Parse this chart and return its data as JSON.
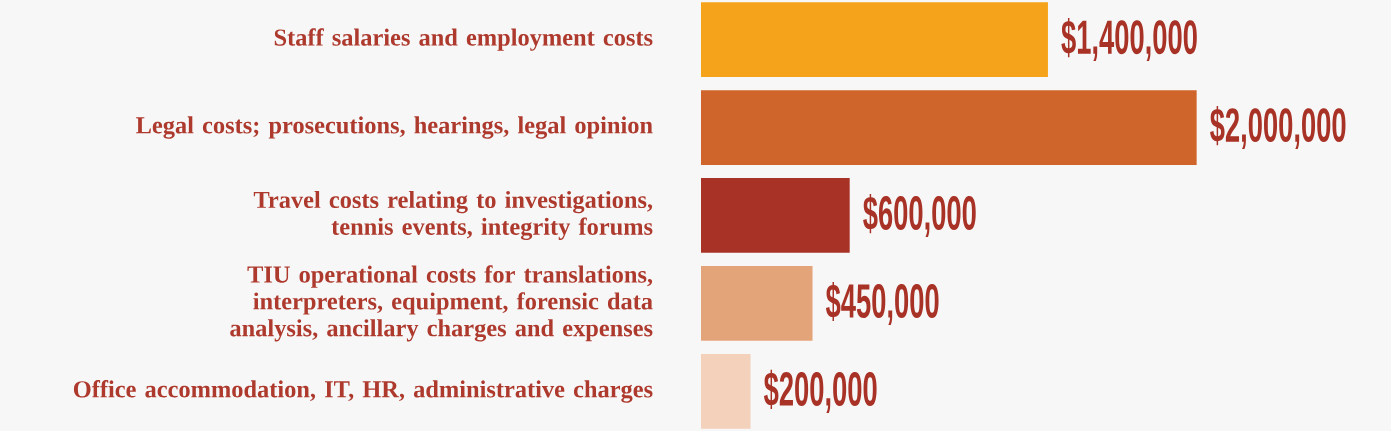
{
  "chart_data": {
    "type": "bar",
    "orientation": "horizontal",
    "categories": [
      "Staff salaries and employment costs",
      "Legal costs; prosecutions, hearings, legal opinion",
      "Travel costs relating to investigations, tennis events, integrity forums",
      "TIU operational costs for translations, interpreters, equipment, forensic data analysis, ancillary charges and expenses",
      "Office accommodation, IT, HR, administrative charges"
    ],
    "values": [
      1400000,
      2000000,
      600000,
      450000,
      200000
    ],
    "colors": [
      "#f5a31a",
      "#d0652b",
      "#a93226",
      "#e4a47a",
      "#f3d1bb"
    ],
    "value_labels": [
      "$1,400,000",
      "$2,000,000",
      "$600,000",
      "$450,000",
      "$200,000"
    ]
  }
}
